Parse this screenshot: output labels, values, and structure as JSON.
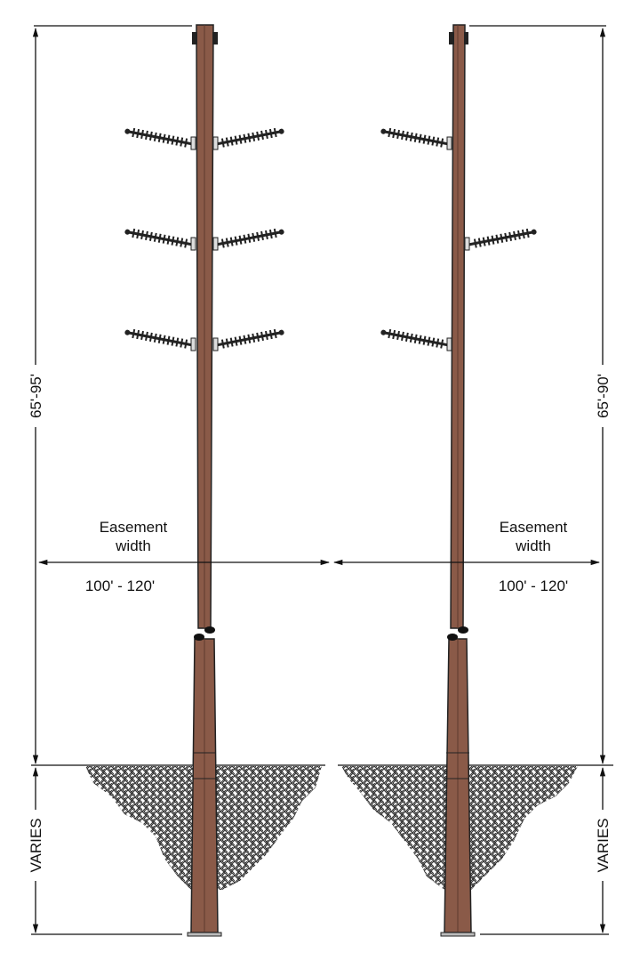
{
  "left_structure": {
    "height_label": "65'-95'",
    "depth_label": "VARIES",
    "easement_label_line1": "Easement",
    "easement_label_line2": "width",
    "easement_value": "100' - 120'"
  },
  "right_structure": {
    "height_label": "65'-90'",
    "depth_label": "VARIES",
    "easement_label_line1": "Easement",
    "easement_label_line2": "width",
    "easement_value": "100' - 120'"
  },
  "colors": {
    "pole": "#8a5a48",
    "pole_dark": "#5e3a2e",
    "line": "#111111",
    "soil": "#555555"
  }
}
